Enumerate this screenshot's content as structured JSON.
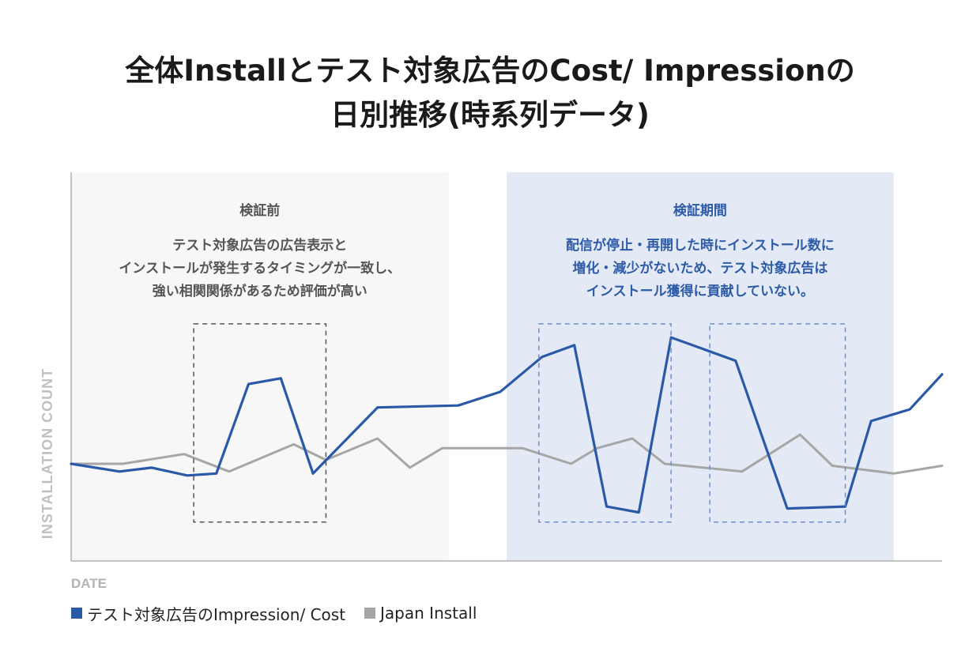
{
  "chart_data": {
    "type": "line",
    "title": "全体Installとテスト対象広告のCost/ Impressionの\n日別推移(時系列データ)",
    "xlabel": "DATE",
    "ylabel": "INSTALLATION COUNT",
    "grid": false,
    "legend_position": "bottom-left",
    "x": [
      0,
      1,
      2,
      3,
      4,
      5,
      6,
      7,
      8,
      9,
      10,
      11,
      12,
      13,
      14,
      15,
      16,
      17,
      18,
      19,
      20,
      21,
      22,
      23,
      24,
      25,
      26,
      27
    ],
    "xlim": [
      0,
      27
    ],
    "ylim": [
      0,
      100
    ],
    "series": [
      {
        "name": "テスト対象広告のImpression/ Cost",
        "color": "#2a5aa7",
        "points": [
          [
            0,
            25
          ],
          [
            1.5,
            23
          ],
          [
            2.5,
            24
          ],
          [
            3.6,
            22
          ],
          [
            4.5,
            22.5
          ],
          [
            5.5,
            45.5
          ],
          [
            6.5,
            47
          ],
          [
            7.5,
            22.5
          ],
          [
            9.5,
            39.5
          ],
          [
            12,
            40
          ],
          [
            13.3,
            43.5
          ],
          [
            14.6,
            52.5
          ],
          [
            15.6,
            55.5
          ],
          [
            16.6,
            14
          ],
          [
            17.6,
            12.5
          ],
          [
            18.6,
            57.5
          ],
          [
            20.6,
            51.5
          ],
          [
            22.2,
            13.5
          ],
          [
            24,
            14
          ],
          [
            24.8,
            36
          ],
          [
            26,
            39
          ],
          [
            27,
            48
          ]
        ]
      },
      {
        "name": "Japan Install",
        "color": "#a6a6a6",
        "points": [
          [
            0,
            25
          ],
          [
            1.6,
            25
          ],
          [
            3.5,
            27.5
          ],
          [
            4.9,
            23
          ],
          [
            6.9,
            30
          ],
          [
            7.9,
            26
          ],
          [
            9.5,
            31.5
          ],
          [
            10.5,
            24
          ],
          [
            11.5,
            29
          ],
          [
            14,
            29
          ],
          [
            15.5,
            25
          ],
          [
            16.3,
            29
          ],
          [
            17.4,
            31.5
          ],
          [
            18.4,
            25
          ],
          [
            20.8,
            23
          ],
          [
            22.6,
            32.5
          ],
          [
            23.6,
            24.5
          ],
          [
            25.5,
            22.5
          ],
          [
            27,
            24.5
          ]
        ]
      }
    ],
    "regions": [
      {
        "name": "before",
        "x_range": [
          0,
          11.7
        ],
        "fill": "#f7f7f7",
        "heading": "検証前",
        "heading_color": "#555555",
        "text": [
          "テスト対象広告の広告表示と",
          "インストールが発生するタイミングが一致し、",
          "強い相関関係があるため評価が高い"
        ],
        "text_color": "#555555"
      },
      {
        "name": "during",
        "x_range": [
          13.5,
          25.5
        ],
        "fill": "#e4eaf5",
        "heading": "検証期間",
        "heading_color": "#2d5ba8",
        "text": [
          "配信が停止・再開した時にインストール数に",
          "増化・減少がないため、テスト対象広告は",
          "インストール獲得に貢献していない。"
        ],
        "text_color": "#2d5ba8"
      }
    ],
    "highlight_boxes": [
      {
        "name": "before-spike",
        "x_range": [
          3.8,
          7.9
        ],
        "y_range": [
          10,
          61
        ],
        "color": "#555555"
      },
      {
        "name": "during-drop-1",
        "x_range": [
          14.5,
          18.6
        ],
        "y_range": [
          10,
          61
        ],
        "color": "#6b8fd0"
      },
      {
        "name": "during-drop-2",
        "x_range": [
          19.8,
          24
        ],
        "y_range": [
          10,
          61
        ],
        "color": "#6b8fd0"
      }
    ]
  }
}
